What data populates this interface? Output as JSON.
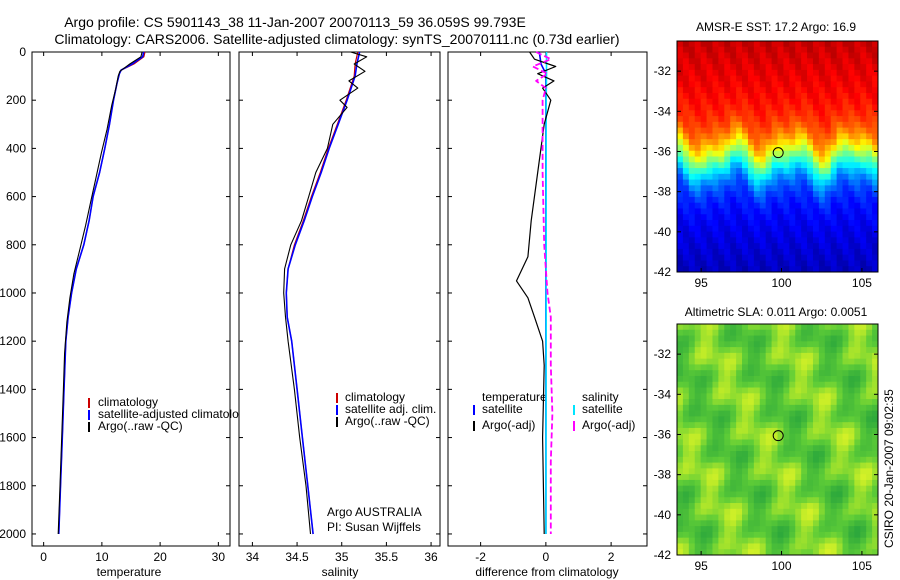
{
  "header": {
    "title_line1": "Argo profile: CS 5901143_38 11-Jan-2007 20070113_59 36.059S 99.793E",
    "title_line2": "Climatology: CARS2006. Satellite-adjusted climatology: synTS_20070111.nc (0.73d earlier)"
  },
  "footer": {
    "credit": "CSIRO 20-Jan-2007 09:02:35"
  },
  "colors": {
    "climatology": "#cc0000",
    "satellite": "#0000ff",
    "argo": "#000000",
    "satellite_diff": "#00e5ff",
    "argo_adj_diff": "#ff00ff"
  },
  "chart_data": [
    {
      "type": "line",
      "id": "temperature",
      "xlabel": "temperature",
      "ylabel": "",
      "xlim": [
        -2,
        32
      ],
      "ylim": [
        2050,
        0
      ],
      "xticks": [
        "0",
        "10",
        "20",
        "30"
      ],
      "xtick_values": [
        0,
        10,
        20,
        30
      ],
      "yticks": [
        "0",
        "200",
        "400",
        "600",
        "800",
        "1000",
        "1200",
        "1400",
        "1600",
        "1800",
        "2000"
      ],
      "ytick_values": [
        0,
        200,
        400,
        600,
        800,
        1000,
        1200,
        1400,
        1600,
        1800,
        2000
      ],
      "series": [
        {
          "name": "climatology",
          "color": "#cc0000",
          "width": 1.2,
          "points": [
            [
              17.4,
              0
            ],
            [
              17.2,
              20
            ],
            [
              15.5,
              50
            ],
            [
              13.3,
              75
            ],
            [
              13.0,
              90
            ],
            [
              12.6,
              130
            ],
            [
              12.0,
              200
            ],
            [
              11.3,
              300
            ],
            [
              10.5,
              400
            ],
            [
              9.6,
              500
            ],
            [
              8.5,
              600
            ],
            [
              7.8,
              700
            ],
            [
              6.9,
              800
            ],
            [
              5.6,
              900
            ],
            [
              4.8,
              1000
            ],
            [
              4.2,
              1100
            ],
            [
              3.8,
              1200
            ],
            [
              3.5,
              1400
            ],
            [
              3.2,
              1600
            ],
            [
              2.9,
              1800
            ],
            [
              2.6,
              2000
            ]
          ]
        },
        {
          "name": "satellite-adjusted climatology",
          "color": "#0000ff",
          "width": 1.6,
          "points": [
            [
              17.2,
              0
            ],
            [
              17.0,
              20
            ],
            [
              15.2,
              50
            ],
            [
              13.3,
              75
            ],
            [
              13.0,
              90
            ],
            [
              12.6,
              130
            ],
            [
              12.0,
              200
            ],
            [
              11.3,
              300
            ],
            [
              10.5,
              400
            ],
            [
              9.6,
              500
            ],
            [
              8.5,
              600
            ],
            [
              7.8,
              700
            ],
            [
              6.9,
              800
            ],
            [
              5.6,
              900
            ],
            [
              4.8,
              1000
            ],
            [
              4.2,
              1100
            ],
            [
              3.8,
              1200
            ],
            [
              3.5,
              1400
            ],
            [
              3.2,
              1600
            ],
            [
              2.9,
              1800
            ],
            [
              2.6,
              2000
            ]
          ]
        },
        {
          "name": "Argo(..raw -QC)",
          "color": "#000000",
          "width": 1.1,
          "points": [
            [
              16.9,
              0
            ],
            [
              16.7,
              20
            ],
            [
              14.8,
              50
            ],
            [
              13.1,
              80
            ],
            [
              12.8,
              100
            ],
            [
              12.4,
              150
            ],
            [
              11.7,
              220
            ],
            [
              10.9,
              320
            ],
            [
              9.9,
              420
            ],
            [
              9.0,
              520
            ],
            [
              8.1,
              620
            ],
            [
              7.2,
              720
            ],
            [
              6.2,
              820
            ],
            [
              5.2,
              920
            ],
            [
              4.5,
              1020
            ],
            [
              4.0,
              1120
            ],
            [
              3.6,
              1250
            ],
            [
              3.4,
              1400
            ],
            [
              3.1,
              1600
            ],
            [
              2.8,
              1800
            ],
            [
              2.5,
              2000
            ]
          ]
        }
      ],
      "legend": {
        "location": "lower-right",
        "entries": [
          "climatology",
          "satellite-adjusted climatology",
          "Argo(..raw -QC)"
        ]
      }
    },
    {
      "type": "line",
      "id": "salinity",
      "xlabel": "salinity",
      "ylabel": "",
      "xlim": [
        33.85,
        36.1
      ],
      "ylim": [
        2050,
        0
      ],
      "xticks": [
        "34",
        "34.5",
        "35",
        "35.5",
        "36"
      ],
      "xtick_values": [
        34,
        34.5,
        35,
        35.5,
        36
      ],
      "series": [
        {
          "name": "climatology",
          "color": "#cc0000",
          "width": 1.2,
          "points": [
            [
              35.18,
              0
            ],
            [
              35.15,
              50
            ],
            [
              35.14,
              100
            ],
            [
              35.05,
              200
            ],
            [
              34.95,
              300
            ],
            [
              34.85,
              400
            ],
            [
              34.76,
              500
            ],
            [
              34.66,
              600
            ],
            [
              34.57,
              700
            ],
            [
              34.47,
              800
            ],
            [
              34.4,
              900
            ],
            [
              34.38,
              1000
            ],
            [
              34.39,
              1100
            ],
            [
              34.44,
              1200
            ],
            [
              34.5,
              1400
            ],
            [
              34.56,
              1600
            ],
            [
              34.62,
              1800
            ],
            [
              34.68,
              2000
            ]
          ]
        },
        {
          "name": "satellite adj. clim.",
          "color": "#0000ff",
          "width": 1.6,
          "points": [
            [
              35.2,
              0
            ],
            [
              35.17,
              50
            ],
            [
              35.15,
              100
            ],
            [
              35.06,
              200
            ],
            [
              34.96,
              300
            ],
            [
              34.86,
              400
            ],
            [
              34.77,
              500
            ],
            [
              34.67,
              600
            ],
            [
              34.58,
              700
            ],
            [
              34.48,
              800
            ],
            [
              34.4,
              900
            ],
            [
              34.38,
              1000
            ],
            [
              34.39,
              1100
            ],
            [
              34.44,
              1200
            ],
            [
              34.5,
              1400
            ],
            [
              34.56,
              1600
            ],
            [
              34.62,
              1800
            ],
            [
              34.68,
              2000
            ]
          ]
        },
        {
          "name": "Argo(..raw -QC)",
          "color": "#000000",
          "width": 1.1,
          "points": [
            [
              35.1,
              0
            ],
            [
              35.28,
              20
            ],
            [
              35.14,
              50
            ],
            [
              35.26,
              80
            ],
            [
              35.08,
              120
            ],
            [
              35.18,
              150
            ],
            [
              34.98,
              200
            ],
            [
              35.06,
              230
            ],
            [
              34.9,
              300
            ],
            [
              34.84,
              400
            ],
            [
              34.71,
              500
            ],
            [
              34.63,
              600
            ],
            [
              34.55,
              700
            ],
            [
              34.43,
              800
            ],
            [
              34.36,
              900
            ],
            [
              34.35,
              1000
            ],
            [
              34.37,
              1100
            ],
            [
              34.4,
              1200
            ],
            [
              34.47,
              1400
            ],
            [
              34.53,
              1600
            ],
            [
              34.6,
              1800
            ],
            [
              34.65,
              2000
            ]
          ]
        }
      ],
      "legend": {
        "location": "lower-right",
        "entries": [
          "climatology",
          "satellite adj. clim.",
          "Argo(..raw -QC)"
        ]
      },
      "annotation": [
        "Argo AUSTRALIA",
        "PI: Susan Wijffels"
      ]
    },
    {
      "type": "line",
      "id": "difference",
      "xlabel": "difference from climatology",
      "ylabel": "",
      "xlim": [
        -3,
        3.1
      ],
      "ylim": [
        2050,
        0
      ],
      "xticks": [
        "-2",
        "0",
        "2"
      ],
      "xtick_values": [
        -2,
        0,
        2
      ],
      "series": [
        {
          "name": "temperature satellite",
          "color": "#0000ff",
          "width": 1.6,
          "dash": false,
          "points": [
            [
              -0.2,
              0
            ],
            [
              -0.15,
              50
            ],
            [
              0.0,
              90
            ],
            [
              0.0,
              200
            ],
            [
              0.0,
              2000
            ]
          ]
        },
        {
          "name": "salinity satellite",
          "color": "#00e5ff",
          "width": 1.6,
          "dash": false,
          "points": [
            [
              0.02,
              0
            ],
            [
              0.02,
              100
            ],
            [
              0.01,
              200
            ],
            [
              0.01,
              1000
            ],
            [
              0.0,
              2000
            ]
          ]
        },
        {
          "name": "temperature Argo(-adj)",
          "color": "#000000",
          "width": 1.2,
          "dash": false,
          "points": [
            [
              -0.5,
              0
            ],
            [
              -0.35,
              30
            ],
            [
              0.3,
              60
            ],
            [
              -0.25,
              90
            ],
            [
              0.25,
              120
            ],
            [
              -0.1,
              150
            ],
            [
              0.15,
              200
            ],
            [
              -0.05,
              300
            ],
            [
              -0.25,
              500
            ],
            [
              -0.45,
              700
            ],
            [
              -0.55,
              850
            ],
            [
              -0.9,
              950
            ],
            [
              -0.55,
              1020
            ],
            [
              -0.35,
              1100
            ],
            [
              -0.1,
              1200
            ],
            [
              -0.05,
              1300
            ],
            [
              -0.1,
              1600
            ],
            [
              -0.05,
              2000
            ]
          ]
        },
        {
          "name": "salinity Argo(-adj)",
          "color": "#ff00ff",
          "width": 1.8,
          "dash": true,
          "points": [
            [
              -0.3,
              0
            ],
            [
              0.15,
              30
            ],
            [
              -0.4,
              60
            ],
            [
              0.05,
              90
            ],
            [
              -0.3,
              120
            ],
            [
              0.0,
              150
            ],
            [
              -0.1,
              200
            ],
            [
              -0.1,
              500
            ],
            [
              -0.05,
              800
            ],
            [
              0.05,
              1000
            ],
            [
              0.15,
              1100
            ],
            [
              0.15,
              1300
            ],
            [
              0.2,
              1500
            ],
            [
              0.15,
              1700
            ],
            [
              0.15,
              2000
            ]
          ]
        }
      ],
      "legend": {
        "location": "lower-right",
        "group_titles": [
          "temperature",
          "salinity"
        ],
        "entries": [
          "satellite",
          "Argo(-adj)",
          "satellite",
          "Argo(-adj)"
        ]
      }
    },
    {
      "type": "heatmap",
      "id": "sst",
      "title": "AMSR-E SST: 17.2 Argo: 16.9",
      "xlim": [
        93.5,
        106
      ],
      "ylim": [
        -42,
        -30.5
      ],
      "xticks": [
        "95",
        "100",
        "105"
      ],
      "xtick_values": [
        95,
        100,
        105
      ],
      "yticks": [
        "-32",
        "-34",
        "-36",
        "-38",
        "-40",
        "-42"
      ],
      "ytick_values": [
        -32,
        -34,
        -36,
        -38,
        -40,
        -42
      ],
      "marker": [
        99.793,
        -36.059
      ],
      "colorscale": "jet"
    },
    {
      "type": "heatmap",
      "id": "sla",
      "title": "Altimetric SLA: 0.011 Argo: 0.0051",
      "xlim": [
        93.5,
        106
      ],
      "ylim": [
        -42,
        -30.5
      ],
      "xticks": [
        "95",
        "100",
        "105"
      ],
      "xtick_values": [
        95,
        100,
        105
      ],
      "yticks": [
        "-32",
        "-34",
        "-36",
        "-38",
        "-40",
        "-42"
      ],
      "ytick_values": [
        -32,
        -34,
        -36,
        -38,
        -40,
        -42
      ],
      "marker": [
        99.793,
        -36.059
      ],
      "colorscale": "green-yellow"
    }
  ]
}
